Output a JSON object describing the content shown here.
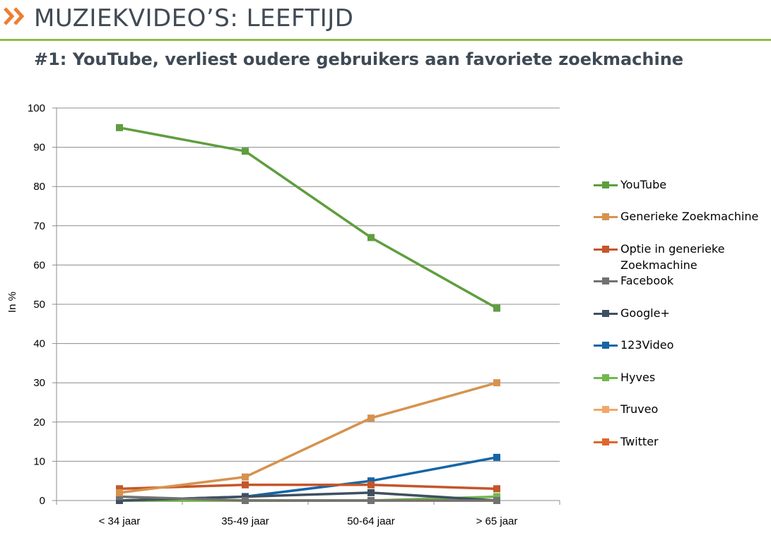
{
  "page": {
    "title": "MUZIEKVIDEO’S: LEEFTIJD",
    "subtitle": "#1: YouTube, verliest oudere gebruikers aan favoriete zoekmachine",
    "accent_color": "#8cbd4b",
    "chevron_color": "#ee7d31",
    "chevron_icon": "double-chevron-right-icon"
  },
  "chart_data": {
    "type": "line",
    "title": "",
    "xlabel": "",
    "ylabel": "In %",
    "ylim": [
      0,
      100
    ],
    "yticks": [
      0,
      10,
      20,
      30,
      40,
      50,
      60,
      70,
      80,
      90,
      100
    ],
    "categories": [
      "< 34 jaar",
      "35-49 jaar",
      "50-64 jaar",
      "> 65 jaar"
    ],
    "grid": true,
    "legend_position": "right",
    "series": [
      {
        "name": "YouTube",
        "color": "#5e9e3e",
        "values": [
          95,
          89,
          67,
          49
        ]
      },
      {
        "name": "Generieke Zoekmachine",
        "color": "#d6924f",
        "values": [
          2,
          6,
          21,
          30
        ]
      },
      {
        "name": "Optie in generieke Zoekmachine",
        "color": "#c4562a",
        "values": [
          3,
          4,
          4,
          3
        ]
      },
      {
        "name": "Facebook",
        "color": "#727272",
        "values": [
          1,
          0,
          0,
          0
        ]
      },
      {
        "name": "Google+",
        "color": "#3e5060",
        "values": [
          0,
          1,
          2,
          0
        ]
      },
      {
        "name": "123Video",
        "color": "#1565a7",
        "values": [
          0,
          1,
          5,
          11
        ]
      },
      {
        "name": "Hyves",
        "color": "#72b84d",
        "values": [
          0,
          0,
          0,
          1
        ]
      },
      {
        "name": "Truveo",
        "color": "#f2a76a",
        "values": [
          0,
          0,
          0,
          0
        ]
      },
      {
        "name": "Twitter",
        "color": "#e0662c",
        "values": [
          0,
          0,
          0,
          0
        ]
      }
    ]
  }
}
